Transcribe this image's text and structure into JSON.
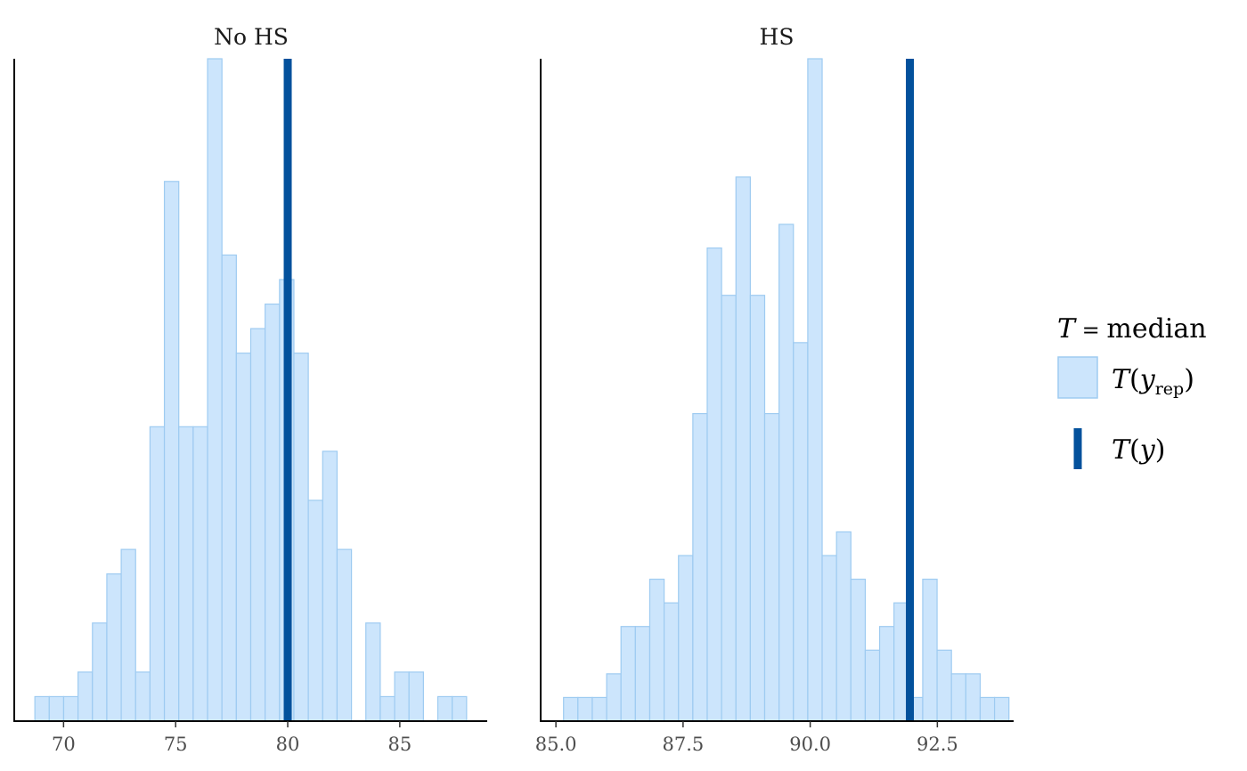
{
  "chart_data": {
    "type": "bar",
    "subtype": "faceted-histogram",
    "colors": {
      "rep_fill": "#cce5fc",
      "rep_edge": "#9ecbf1",
      "observed_line": "#03519c",
      "axis": "#000000",
      "tick_text": "#4d4d4d"
    },
    "legend": {
      "title_italic": "T",
      "title_eq": " = ",
      "title_rest": "median",
      "rep_label_T": "T",
      "rep_label_y": "y",
      "rep_label_sub": "rep",
      "obs_label_T": "T",
      "obs_label_y": "y",
      "position": "right"
    },
    "panels": [
      {
        "title": "No HS",
        "xlim": [
          67.8,
          88.9
        ],
        "xticks": [
          70,
          75,
          80,
          85
        ],
        "xtick_labels": [
          "70",
          "75",
          "80",
          "85"
        ],
        "bin_start": 68.72,
        "bin_width": 0.642,
        "counts": [
          1,
          1,
          1,
          2,
          4,
          6,
          7,
          2,
          12,
          22,
          12,
          12,
          27,
          19,
          15,
          16,
          17,
          18,
          15,
          9,
          11,
          7,
          0,
          4,
          1,
          2,
          2,
          0,
          1,
          1
        ],
        "observed": 80.0
      },
      {
        "title": "HS",
        "xlim": [
          84.7,
          94.0
        ],
        "xticks": [
          85.0,
          87.5,
          90.0,
          92.5
        ],
        "xtick_labels": [
          "85.0",
          "87.5",
          "90.0",
          "92.5"
        ],
        "bin_start": 85.15,
        "bin_width": 0.2825,
        "counts": [
          1,
          1,
          1,
          2,
          4,
          4,
          6,
          5,
          7,
          13,
          20,
          18,
          23,
          18,
          13,
          21,
          16,
          28,
          7,
          8,
          6,
          3,
          4,
          5,
          1,
          6,
          3,
          2,
          2,
          1,
          1
        ],
        "observed": 91.96
      }
    ]
  }
}
